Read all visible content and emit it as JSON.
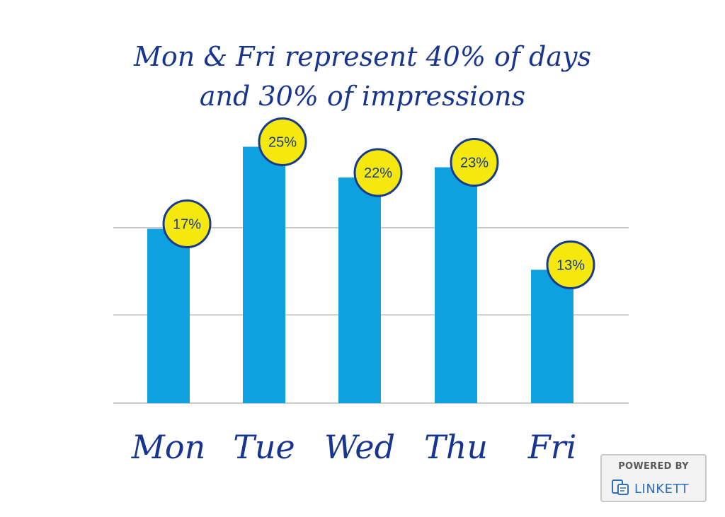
{
  "chart_data": {
    "type": "bar",
    "title_lines": [
      "Mon & Fri represent 40% of days",
      "and 30% of impressions"
    ],
    "categories": [
      "Mon",
      "Tue",
      "Wed",
      "Thu",
      "Fri"
    ],
    "values": [
      17,
      25,
      22,
      23,
      13
    ],
    "value_labels": [
      "17%",
      "25%",
      "22%",
      "23%",
      "13%"
    ],
    "ylim": [
      0,
      30
    ],
    "grid": true,
    "colors": {
      "bar": "#0fa0e0",
      "label_bubble": "#f5e80f",
      "label_border": "#1a3a8a",
      "label_text": "#1a3a8a",
      "category_text": "#17358f",
      "grid": "#c9c9c9"
    }
  },
  "badge": {
    "top_text": "POWERED BY",
    "brand": "LINKETT"
  }
}
